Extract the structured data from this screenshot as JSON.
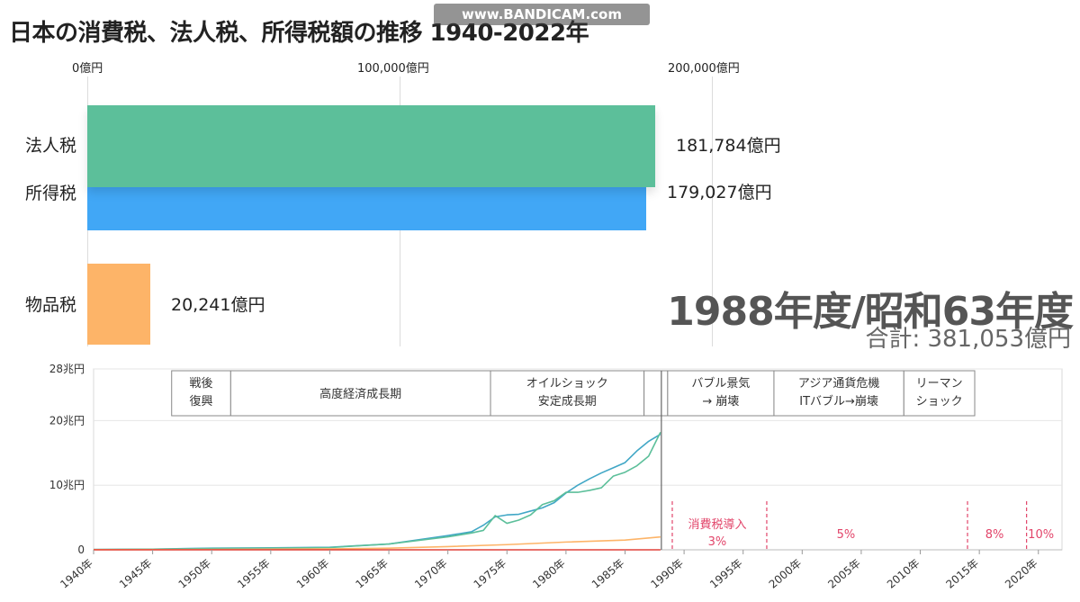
{
  "title": "日本の消費税、法人税、所得税額の推移 1940-2022年",
  "watermark": "www.BANDICAM.com",
  "race": {
    "axis_ticks": [
      "0億円",
      "100,000億円",
      "200,000億円"
    ],
    "year_label": "1988年度/昭和63年度",
    "total_label": "合計: 381,053億円",
    "bars": [
      {
        "name": "法人税",
        "value": 181784,
        "value_label": "181,784億円",
        "color": "#5cbf9a"
      },
      {
        "name": "所得税",
        "value": 179027,
        "value_label": "179,027億円",
        "color": "#41a7f6"
      },
      {
        "name": "物品税",
        "value": 20241,
        "value_label": "20,241億円",
        "color": "#fdb468"
      }
    ]
  },
  "chart_data": {
    "type": "line",
    "x_range": [
      1940,
      2022
    ],
    "ylim": [
      0,
      28
    ],
    "y_ticks": [
      "0",
      "10兆円",
      "20兆円",
      "28兆円"
    ],
    "x_ticks": [
      "1940年",
      "1945年",
      "1950年",
      "1955年",
      "1960年",
      "1965年",
      "1970年",
      "1975年",
      "1980年",
      "1985年",
      "1990年",
      "1995年",
      "2000年",
      "2005年",
      "2010年",
      "2015年",
      "2020年"
    ],
    "current_year": 1988,
    "series": [
      {
        "name": "所得税",
        "color": "#41a7c6",
        "x": [
          1940,
          1945,
          1948,
          1950,
          1955,
          1960,
          1965,
          1970,
          1972,
          1973,
          1974,
          1975,
          1976,
          1977,
          1978,
          1979,
          1980,
          1981,
          1982,
          1983,
          1984,
          1985,
          1986,
          1987,
          1988
        ],
        "values": [
          0.05,
          0.1,
          0.2,
          0.25,
          0.3,
          0.4,
          0.9,
          2.2,
          2.8,
          3.8,
          5.1,
          5.4,
          5.5,
          6.0,
          6.5,
          7.3,
          8.8,
          10.0,
          11.0,
          11.9,
          12.7,
          13.5,
          15.3,
          16.8,
          17.9
        ]
      },
      {
        "name": "法人税",
        "color": "#5cbf9a",
        "x": [
          1940,
          1945,
          1948,
          1950,
          1955,
          1960,
          1965,
          1970,
          1972,
          1973,
          1974,
          1975,
          1976,
          1977,
          1978,
          1979,
          1980,
          1981,
          1982,
          1983,
          1984,
          1985,
          1986,
          1987,
          1988
        ],
        "values": [
          0.05,
          0.1,
          0.15,
          0.2,
          0.25,
          0.35,
          0.9,
          2.0,
          2.6,
          3.0,
          5.3,
          4.1,
          4.6,
          5.4,
          7.0,
          7.6,
          8.9,
          8.9,
          9.2,
          9.6,
          11.4,
          12.0,
          13.0,
          14.5,
          18.2
        ]
      },
      {
        "name": "物品税",
        "color": "#fdb468",
        "x": [
          1940,
          1950,
          1960,
          1965,
          1970,
          1975,
          1980,
          1985,
          1988
        ],
        "values": [
          0.02,
          0.05,
          0.15,
          0.25,
          0.5,
          0.8,
          1.2,
          1.5,
          2.0
        ]
      },
      {
        "name": "消費税",
        "color": "#e0423a",
        "x": [
          1940,
          1988
        ],
        "values": [
          0,
          0
        ]
      }
    ],
    "eras": [
      {
        "line1": "戦後",
        "line2": "復興",
        "from": 1946,
        "to": 1951
      },
      {
        "line1": "高度経済成長期",
        "line2": "",
        "from": 1951,
        "to": 1973
      },
      {
        "line1": "オイルショック",
        "line2": "安定成長期",
        "from": 1973,
        "to": 1986
      },
      {
        "line1": "",
        "line2": "",
        "from": 1986,
        "to": 1988
      },
      {
        "line1": "バブル景気",
        "line2": "→ 崩壊",
        "from": 1988,
        "to": 1997
      },
      {
        "line1": "アジア通貨危機",
        "line2": "ITバブル→崩壊",
        "from": 1997,
        "to": 2008
      },
      {
        "line1": "リーマン",
        "line2": "ショック",
        "from": 2008,
        "to": 2014
      }
    ],
    "tax_events": [
      {
        "year": 1989,
        "line1": "消費税導入",
        "line2": "3%"
      },
      {
        "year": 1997,
        "line1": "5%",
        "line2": ""
      },
      {
        "year": 2014,
        "line1": "8%",
        "line2": ""
      },
      {
        "year": 2019,
        "line1": "10%",
        "line2": ""
      }
    ]
  }
}
